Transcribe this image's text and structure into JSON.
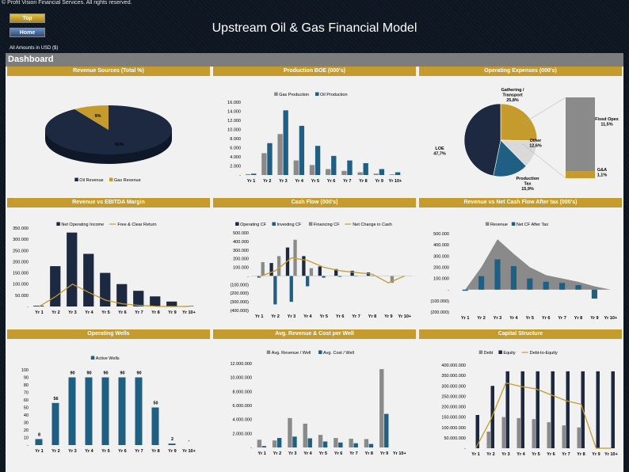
{
  "header": {
    "copyright": "© Profit Vision Financial Services. All rights reserved.",
    "top_button": "Top",
    "home_button": "Home",
    "title": "Upstream Oil & Gas Financial Model",
    "amounts_note": "All Amounts in  USD ($)",
    "dashboard_label": "Dashboard"
  },
  "colors": {
    "navy": "#1c2940",
    "gold": "#c49b2c",
    "gray": "#8a8a8a",
    "teal": "#1f5f84",
    "lightgray": "#c8c8c8"
  },
  "years": [
    "Yr 1",
    "Yr 2",
    "Yr 3",
    "Yr 4",
    "Yr 5",
    "Yr 6",
    "Yr 7",
    "Yr 8",
    "Yr 9",
    "Yr 10+"
  ],
  "chart_data": [
    {
      "id": "revenue_sources",
      "type": "pie",
      "title": "Revenue Sources (Total %)",
      "labels": [
        "Oil Revenue",
        "Gas Revenue"
      ],
      "values": [
        91,
        9
      ],
      "data_labels": [
        "91%",
        "9%"
      ],
      "colors": [
        "#1c2940",
        "#c49b2c"
      ],
      "legend": "bottom"
    },
    {
      "id": "production",
      "type": "bar",
      "title": "Production BOE (000's)",
      "series": [
        {
          "name": "Gas Production",
          "values": [
            200,
            4800,
            9000,
            3200,
            2200,
            1300,
            900,
            600,
            300,
            150
          ],
          "color": "#8a8a8a"
        },
        {
          "name": "Oil Production",
          "values": [
            300,
            7000,
            14200,
            10800,
            6400,
            4200,
            3200,
            2600,
            1300,
            600
          ],
          "color": "#1f5f84"
        }
      ],
      "ylim": [
        0,
        16000
      ],
      "yticks": [
        0,
        2000,
        4000,
        6000,
        8000,
        10000,
        12000,
        14000,
        16000
      ],
      "ytick_labels": [
        "-",
        "2.000",
        "4.000",
        "6.000",
        "8.000",
        "10.000",
        "12.000",
        "14.000",
        "16.000"
      ],
      "legend": "top"
    },
    {
      "id": "opex",
      "type": "pie",
      "title": "Operating Expenses (000's)",
      "labels": [
        "LOE",
        "Gathering / Transport",
        "Other",
        "Production Tax"
      ],
      "values": [
        47.7,
        25.8,
        12.6,
        15.9
      ],
      "data_labels": [
        "LOE\n47,7%",
        "Gathering /\nTransport\n25,8%",
        "Other\n12,6%",
        "Production\nTax\n15,9%"
      ],
      "colors": [
        "#1c2940",
        "#c49b2c",
        "#d9d9d9",
        "#1f5f84"
      ],
      "breakdown": {
        "labels": [
          "Fixed Opex",
          "G&A"
        ],
        "values": [
          11.5,
          1.1
        ],
        "data_labels": [
          "Fixed Opex\n11,5%",
          "G&A\n1,1%"
        ],
        "colors": [
          "#8a8a8a",
          "#c49b2c"
        ]
      }
    },
    {
      "id": "revenue_ebitda",
      "type": "bar",
      "title": "Revenue vs EBITDA Margin",
      "series": [
        {
          "name": "Net Operating Income",
          "values": [
            3000,
            180000,
            330000,
            235000,
            150000,
            100000,
            70000,
            45000,
            22000,
            2000
          ],
          "color": "#1c2940"
        },
        {
          "name": "Free & Clear Return",
          "values": [
            0,
            45000,
            100000,
            62000,
            28000,
            12000,
            5000,
            1000,
            0,
            0
          ],
          "color": "#c49b2c",
          "line": true
        }
      ],
      "ylim": [
        0,
        350000
      ],
      "yticks": [
        0,
        50000,
        100000,
        150000,
        200000,
        250000,
        300000,
        350000
      ],
      "ytick_labels": [
        "-",
        "50.000",
        "100.000",
        "150.000",
        "200.000",
        "250.000",
        "300.000",
        "350.000"
      ],
      "legend": "top"
    },
    {
      "id": "cash_flow",
      "type": "bar",
      "title": "Cash Flow (000's)",
      "series": [
        {
          "name": "Operating CF",
          "values": [
            0,
            150000,
            330000,
            230000,
            110000,
            80000,
            60000,
            40000,
            0,
            0
          ],
          "color": "#1c2940"
        },
        {
          "name": "Investing CF",
          "values": [
            -20000,
            -330000,
            -300000,
            -120000,
            -20000,
            -10000,
            -5000,
            -2000,
            0,
            0
          ],
          "color": "#1f5f84"
        },
        {
          "name": "Financing CF",
          "values": [
            160000,
            230000,
            420000,
            90000,
            0,
            0,
            0,
            0,
            -80000,
            0
          ],
          "color": "#8a8a8a"
        },
        {
          "name": "Net Change in Cash",
          "values": [
            -10000,
            60000,
            210000,
            180000,
            100000,
            60000,
            40000,
            20000,
            -80000,
            0
          ],
          "color": "#c49b2c",
          "line": true
        }
      ],
      "ylim": [
        -400000,
        500000
      ],
      "yticks": [
        -400000,
        -300000,
        -200000,
        -100000,
        0,
        100000,
        200000,
        300000,
        400000,
        500000
      ],
      "ytick_labels": [
        "(400.000)",
        "(300.000)",
        "(200.000)",
        "(100.000)",
        "-",
        "100.000",
        "200.000",
        "300.000",
        "400.000",
        "500.000"
      ],
      "legend": "top"
    },
    {
      "id": "revenue_ncf",
      "type": "area",
      "title": "Revenue vs Net Cash Flow After tax (000's)",
      "series": [
        {
          "name": "Revenue",
          "values": [
            0,
            200000,
            450000,
            320000,
            200000,
            130000,
            100000,
            70000,
            30000,
            0
          ],
          "color": "#8a8a8a",
          "area": true
        },
        {
          "name": "Net CF After Tax",
          "values": [
            -10000,
            120000,
            270000,
            210000,
            100000,
            70000,
            60000,
            40000,
            -80000,
            0
          ],
          "color": "#1f5f84"
        }
      ],
      "ylim": [
        -200000,
        500000
      ],
      "yticks": [
        -200000,
        -100000,
        0,
        100000,
        200000,
        300000,
        400000,
        500000
      ],
      "ytick_labels": [
        "(200.000)",
        "(100.000)",
        "-",
        "100.000",
        "200.000",
        "300.000",
        "400.000",
        "500.000"
      ],
      "legend": "top"
    },
    {
      "id": "operating_wells",
      "type": "bar",
      "title": "Operating Wells",
      "series": [
        {
          "name": "Active Wells",
          "values": [
            8,
            56,
            90,
            90,
            90,
            90,
            90,
            50,
            2,
            0
          ],
          "color": "#1f5f84"
        }
      ],
      "data_labels": [
        "8",
        "56",
        "90",
        "90",
        "90",
        "90",
        "90",
        "50",
        "2",
        "-"
      ],
      "ylim": [
        0,
        100
      ],
      "yticks": [
        0,
        10,
        20,
        30,
        40,
        50,
        60,
        70,
        80,
        90,
        100
      ],
      "ytick_labels": [
        "-",
        "10",
        "20",
        "30",
        "40",
        "50",
        "60",
        "70",
        "80",
        "90",
        "100"
      ],
      "legend": "top"
    },
    {
      "id": "avg_revenue_cost",
      "type": "bar",
      "title": "Avg. Revenue & Cost per Well",
      "series": [
        {
          "name": "Avg. Revenue / Well",
          "values": [
            1100000,
            1000000,
            4200000,
            3400000,
            1800000,
            1350000,
            1250000,
            1200000,
            11200000,
            0
          ],
          "color": "#8a8a8a"
        },
        {
          "name": "Avg. Cost / Well",
          "values": [
            200000,
            1350000,
            1550000,
            1300000,
            850000,
            700000,
            600000,
            500000,
            4800000,
            0
          ],
          "color": "#1f5f84"
        }
      ],
      "ylim": [
        0,
        12000000
      ],
      "yticks": [
        0,
        2000000,
        4000000,
        6000000,
        8000000,
        10000000,
        12000000
      ],
      "ytick_labels": [
        "-",
        "2.000.000",
        "4.000.000",
        "6.000.000",
        "8.000.000",
        "10.000.000",
        "12.000.000"
      ],
      "legend": "top"
    },
    {
      "id": "capital_structure",
      "type": "bar",
      "title": "Capital Structure",
      "series": [
        {
          "name": "Debt",
          "values": [
            0,
            80000000,
            150000000,
            145000000,
            140000000,
            125000000,
            110000000,
            100000000,
            0,
            0
          ],
          "color": "#8a8a8a"
        },
        {
          "name": "Equity",
          "values": [
            160000000,
            300000000,
            370000000,
            370000000,
            370000000,
            370000000,
            370000000,
            370000000,
            370000000,
            370000000
          ],
          "color": "#1c2940"
        },
        {
          "name": "Debt-to-Equity",
          "values": [
            0,
            0.24,
            0.55,
            0.52,
            0.5,
            0.45,
            0.4,
            0.37,
            0,
            0
          ],
          "color": "#c49b2c",
          "line": true,
          "secondary_axis": true
        }
      ],
      "ylim": [
        0,
        400000000
      ],
      "yticks": [
        0,
        50000000,
        100000000,
        150000000,
        200000000,
        250000000,
        300000000,
        350000000,
        400000000
      ],
      "ytick_labels": [
        "-",
        "50.000.000",
        "100.000.000",
        "150.000.000",
        "200.000.000",
        "250.000.000",
        "300.000.000",
        "350.000.000",
        "400.000.000"
      ],
      "legend": "top"
    }
  ]
}
